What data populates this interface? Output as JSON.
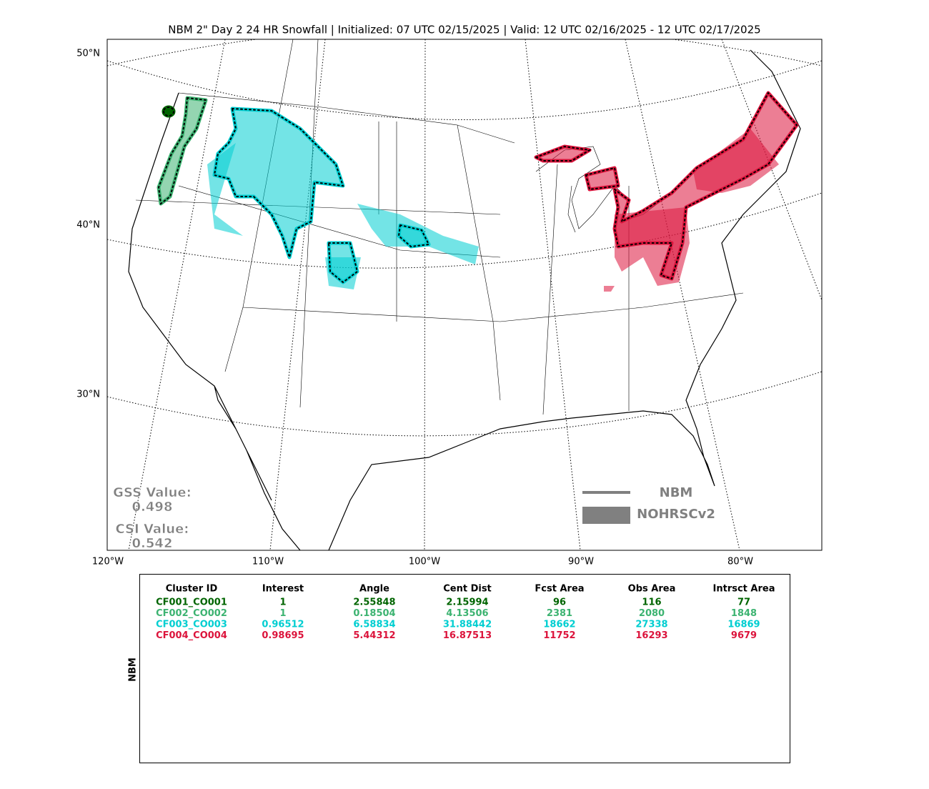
{
  "title": "NBM 2\" Day 2 24 HR Snowfall | Initialized: 07 UTC 02/15/2025 | Valid: 12 UTC 02/16/2025 - 12 UTC 02/17/2025",
  "map": {
    "lat_labels": [
      "50°N",
      "40°N",
      "30°N"
    ],
    "lon_labels": [
      "120°W",
      "110°W",
      "100°W",
      "90°W",
      "80°W"
    ],
    "scores": [
      {
        "label": "GSS Value:",
        "value": "0.498"
      },
      {
        "label": "CSI Value:",
        "value": "0.542"
      }
    ],
    "legend": [
      {
        "label": "NBM",
        "color": "#808080"
      },
      {
        "label": "NOHRSCv2",
        "color": "#808080"
      }
    ],
    "clusters": [
      {
        "color": "#006400"
      },
      {
        "color": "#3cb371"
      },
      {
        "color": "#00ced1"
      },
      {
        "color": "#dc143c"
      }
    ]
  },
  "table": {
    "side_label": "NBM",
    "columns": [
      "Cluster ID",
      "Interest",
      "Angle",
      "Cent Dist",
      "Fcst Area",
      "Obs Area",
      "Intrsct Area"
    ],
    "rows": [
      {
        "color": "#006400",
        "cells": [
          "CF001_CO001",
          "1",
          "2.55848",
          "2.15994",
          "96",
          "116",
          "77"
        ]
      },
      {
        "color": "#3cb371",
        "cells": [
          "CF002_CO002",
          "1",
          "0.18504",
          "4.13506",
          "2381",
          "2080",
          "1848"
        ]
      },
      {
        "color": "#00ced1",
        "cells": [
          "CF003_CO003",
          "0.96512",
          "6.58834",
          "31.88442",
          "18662",
          "27338",
          "16869"
        ]
      },
      {
        "color": "#dc143c",
        "cells": [
          "CF004_CO004",
          "0.98695",
          "5.44312",
          "16.87513",
          "11752",
          "16293",
          "9679"
        ]
      }
    ]
  }
}
